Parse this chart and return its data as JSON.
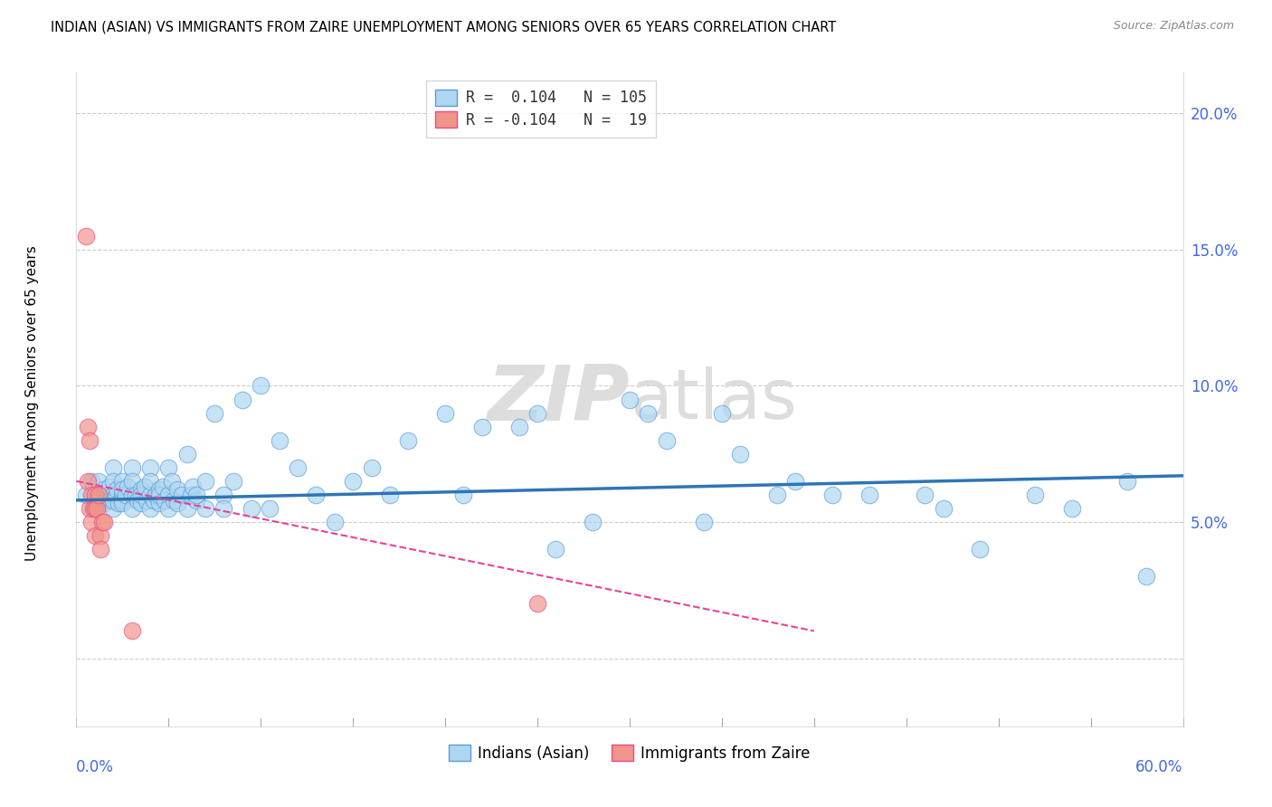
{
  "title": "INDIAN (ASIAN) VS IMMIGRANTS FROM ZAIRE UNEMPLOYMENT AMONG SENIORS OVER 65 YEARS CORRELATION CHART",
  "source": "Source: ZipAtlas.com",
  "ylabel": "Unemployment Among Seniors over 65 years",
  "x_min": 0.0,
  "x_max": 0.6,
  "y_min": -0.025,
  "y_max": 0.215,
  "y_ticks": [
    0.0,
    0.05,
    0.1,
    0.15,
    0.2
  ],
  "y_tick_labels": [
    "",
    "5.0%",
    "10.0%",
    "15.0%",
    "20.0%"
  ],
  "legend_r1": "R =  0.104",
  "legend_n1": "N = 105",
  "legend_r2": "R = -0.104",
  "legend_n2": "N =  19",
  "legend_label3": "Indians (Asian)",
  "legend_label4": "Immigrants from Zaire",
  "color_blue": "#AED6F1",
  "color_blue_edge": "#5B9BD5",
  "color_pink": "#F1948A",
  "color_pink_edge": "#E74C8B",
  "trend_blue_color": "#2E75B6",
  "trend_pink_color": "#E84393",
  "watermark_color": "#DDDDDD",
  "blue_x": [
    0.005,
    0.008,
    0.01,
    0.01,
    0.012,
    0.013,
    0.013,
    0.015,
    0.015,
    0.017,
    0.018,
    0.018,
    0.02,
    0.02,
    0.02,
    0.02,
    0.02,
    0.022,
    0.022,
    0.023,
    0.025,
    0.025,
    0.025,
    0.025,
    0.025,
    0.027,
    0.028,
    0.03,
    0.03,
    0.03,
    0.03,
    0.032,
    0.033,
    0.035,
    0.035,
    0.035,
    0.037,
    0.038,
    0.04,
    0.04,
    0.04,
    0.04,
    0.042,
    0.043,
    0.045,
    0.045,
    0.045,
    0.047,
    0.048,
    0.05,
    0.05,
    0.05,
    0.052,
    0.053,
    0.055,
    0.055,
    0.057,
    0.06,
    0.06,
    0.062,
    0.063,
    0.065,
    0.065,
    0.07,
    0.07,
    0.075,
    0.08,
    0.08,
    0.085,
    0.09,
    0.095,
    0.1,
    0.105,
    0.11,
    0.12,
    0.13,
    0.14,
    0.15,
    0.16,
    0.17,
    0.18,
    0.2,
    0.21,
    0.22,
    0.24,
    0.25,
    0.26,
    0.28,
    0.3,
    0.31,
    0.32,
    0.34,
    0.35,
    0.36,
    0.38,
    0.39,
    0.41,
    0.43,
    0.46,
    0.47,
    0.49,
    0.52,
    0.54,
    0.57,
    0.58
  ],
  "blue_y": [
    0.06,
    0.065,
    0.06,
    0.055,
    0.065,
    0.06,
    0.058,
    0.062,
    0.057,
    0.06,
    0.063,
    0.058,
    0.07,
    0.06,
    0.055,
    0.065,
    0.058,
    0.06,
    0.062,
    0.057,
    0.065,
    0.06,
    0.058,
    0.062,
    0.057,
    0.06,
    0.063,
    0.07,
    0.06,
    0.055,
    0.065,
    0.06,
    0.058,
    0.062,
    0.057,
    0.06,
    0.063,
    0.058,
    0.07,
    0.06,
    0.055,
    0.065,
    0.058,
    0.06,
    0.062,
    0.057,
    0.06,
    0.063,
    0.058,
    0.07,
    0.06,
    0.055,
    0.065,
    0.058,
    0.062,
    0.057,
    0.06,
    0.075,
    0.055,
    0.06,
    0.063,
    0.058,
    0.06,
    0.065,
    0.055,
    0.09,
    0.06,
    0.055,
    0.065,
    0.095,
    0.055,
    0.1,
    0.055,
    0.08,
    0.07,
    0.06,
    0.05,
    0.065,
    0.07,
    0.06,
    0.08,
    0.09,
    0.06,
    0.085,
    0.085,
    0.09,
    0.04,
    0.05,
    0.095,
    0.09,
    0.08,
    0.05,
    0.09,
    0.075,
    0.06,
    0.065,
    0.06,
    0.06,
    0.06,
    0.055,
    0.04,
    0.06,
    0.055,
    0.065,
    0.03
  ],
  "pink_x": [
    0.005,
    0.006,
    0.006,
    0.007,
    0.007,
    0.008,
    0.008,
    0.009,
    0.01,
    0.01,
    0.01,
    0.011,
    0.012,
    0.013,
    0.013,
    0.014,
    0.015,
    0.03,
    0.25
  ],
  "pink_y": [
    0.155,
    0.085,
    0.065,
    0.08,
    0.055,
    0.06,
    0.05,
    0.055,
    0.06,
    0.045,
    0.055,
    0.055,
    0.06,
    0.045,
    0.04,
    0.05,
    0.05,
    0.01,
    0.02
  ],
  "blue_trend_x0": 0.0,
  "blue_trend_x1": 0.6,
  "blue_trend_y0": 0.058,
  "blue_trend_y1": 0.067,
  "pink_trend_x0": 0.0,
  "pink_trend_x1": 0.4,
  "pink_trend_y0": 0.065,
  "pink_trend_y1": 0.01
}
